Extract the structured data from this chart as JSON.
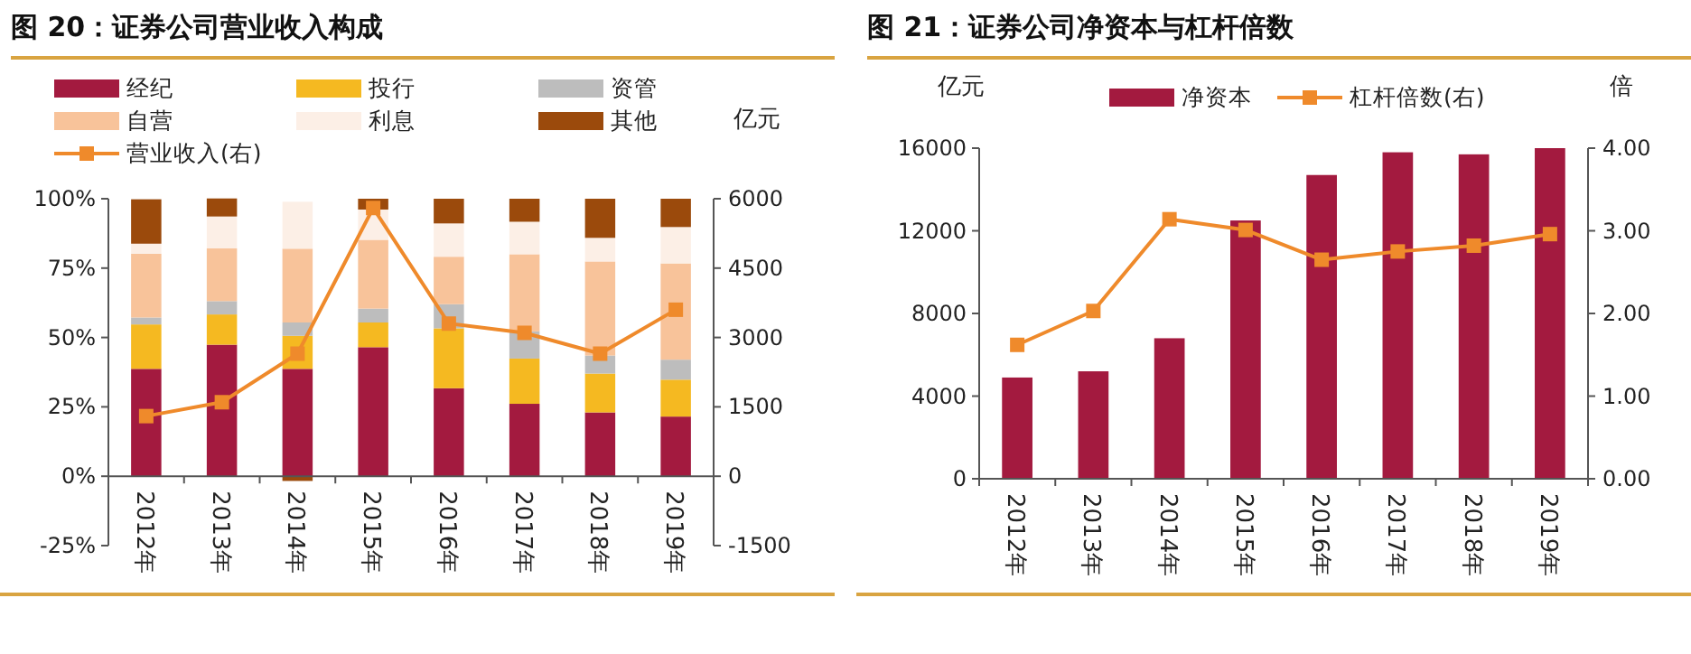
{
  "chart_data": [
    {
      "type": "bar",
      "title": "图 20：证券公司营业收入构成",
      "stacked": true,
      "legend": "top",
      "marker": "square",
      "grid": false,
      "y2label": "亿元",
      "categories": [
        "2012年",
        "2013年",
        "2014年",
        "2015年",
        "2016年",
        "2017年",
        "2018年",
        "2019年"
      ],
      "series": [
        {
          "name": "经纪",
          "color": "#a31a3f",
          "values": [
            38.7,
            47.4,
            38.7,
            46.5,
            31.7,
            26.1,
            23,
            21.5
          ]
        },
        {
          "name": "投行",
          "color": "#f5b921",
          "values": [
            16,
            10.9,
            11.9,
            8.9,
            21.6,
            16.3,
            14,
            13.3
          ]
        },
        {
          "name": "资管",
          "color": "#bdbdbd",
          "values": [
            2.5,
            4.8,
            4.8,
            5,
            8.7,
            9.8,
            6.5,
            7.2
          ]
        },
        {
          "name": "自营",
          "color": "#f8c39a",
          "values": [
            23,
            19,
            26.6,
            24.8,
            17.1,
            27.8,
            33.9,
            34.7
          ]
        },
        {
          "name": "利息",
          "color": "#fcefe6",
          "values": [
            3.6,
            11.5,
            16.9,
            10.9,
            12,
            11.7,
            8.5,
            13.1
          ]
        },
        {
          "name": "其他",
          "color": "#9b4a0c",
          "values": [
            16,
            6.5,
            -1.7,
            3.9,
            8.9,
            8.3,
            14.1,
            10.2
          ]
        },
        {
          "name": "营业收入(右)",
          "color": "#ef8a2b",
          "type": "line",
          "axis": "y2",
          "values": [
            1300,
            1600,
            2650,
            5800,
            3300,
            3100,
            2650,
            3600
          ]
        }
      ],
      "ylim": [
        -25,
        100
      ],
      "yticks": [
        {
          "value": -25,
          "label": "-25%"
        },
        {
          "value": 0,
          "label": "0%"
        },
        {
          "value": 25,
          "label": "25%"
        },
        {
          "value": 50,
          "label": "50%"
        },
        {
          "value": 75,
          "label": "75%"
        },
        {
          "value": 100,
          "label": "100%"
        }
      ],
      "y2lim": [
        -1500,
        6000
      ],
      "y2ticks": [
        -1500,
        0,
        1500,
        3000,
        4500,
        6000
      ]
    },
    {
      "type": "bar",
      "title": "图 21：证券公司净资本与杠杆倍数",
      "legend": "top",
      "marker": "square",
      "grid": false,
      "ylabel": "亿元",
      "y2label": "倍",
      "categories": [
        "2012年",
        "2013年",
        "2014年",
        "2015年",
        "2016年",
        "2017年",
        "2018年",
        "2019年"
      ],
      "series": [
        {
          "name": "净资本",
          "color": "#a31a3f",
          "values": [
            4900,
            5200,
            6800,
            12500,
            14700,
            15800,
            15700,
            16000
          ]
        },
        {
          "name": "杠杆倍数(右)",
          "color": "#ef8a2b",
          "type": "line",
          "axis": "y2",
          "values": [
            1.62,
            2.03,
            3.14,
            3.01,
            2.65,
            2.75,
            2.82,
            2.96
          ]
        }
      ],
      "ylim": [
        0,
        16000
      ],
      "yticks": [
        0,
        4000,
        8000,
        12000,
        16000
      ],
      "y2lim": [
        0,
        4
      ],
      "y2ticks": [
        {
          "value": 0,
          "label": "0.00"
        },
        {
          "value": 1,
          "label": "1.00"
        },
        {
          "value": 2,
          "label": "2.00"
        },
        {
          "value": 3,
          "label": "3.00"
        },
        {
          "value": 4,
          "label": "4.00"
        }
      ]
    }
  ]
}
